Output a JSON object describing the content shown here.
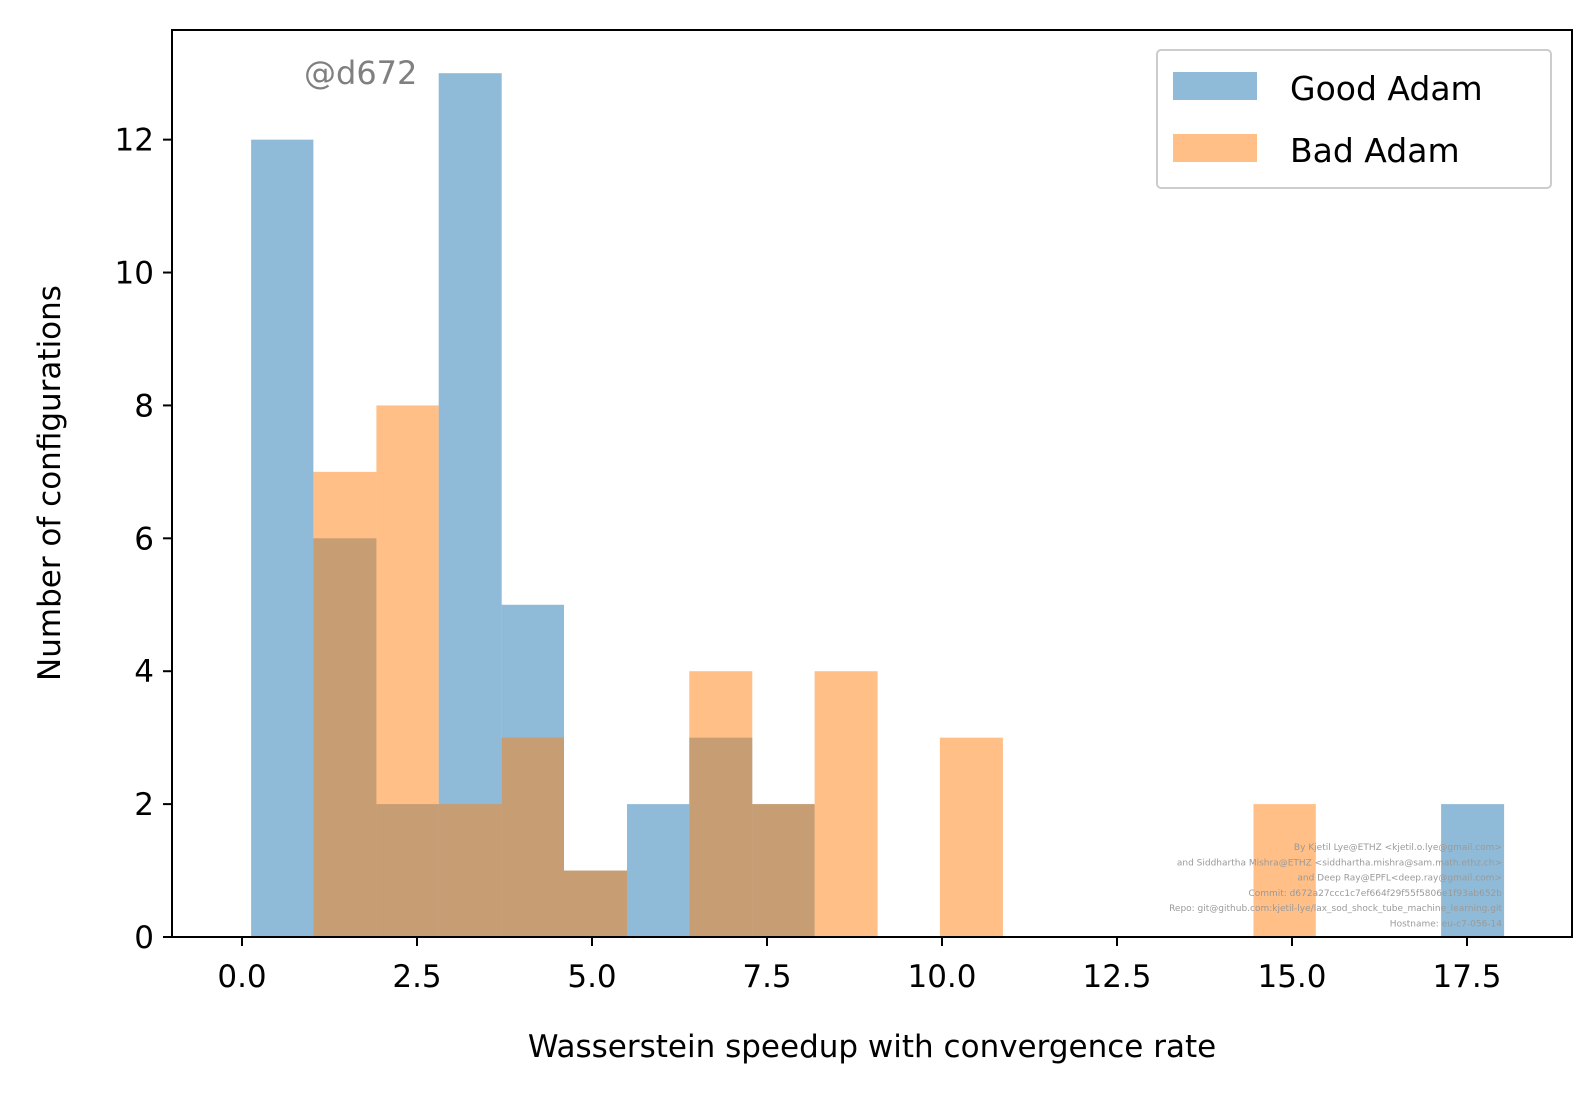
{
  "chart_data": {
    "type": "bar",
    "subtype": "overlapping-histogram",
    "xlabel": "Wasserstein speedup with convergence rate",
    "ylabel": "Number of configurations",
    "xlim": [
      -1.0,
      19.0
    ],
    "ylim": [
      0,
      13.65
    ],
    "x_ticks": [
      0.0,
      2.5,
      5.0,
      7.5,
      10.0,
      12.5,
      15.0,
      17.5
    ],
    "x_tick_labels": [
      "0.0",
      "2.5",
      "5.0",
      "7.5",
      "10.0",
      "12.5",
      "15.0",
      "17.5"
    ],
    "y_ticks": [
      0,
      2,
      4,
      6,
      8,
      10,
      12
    ],
    "y_tick_labels": [
      "0",
      "2",
      "4",
      "6",
      "8",
      "10",
      "12"
    ],
    "grid": false,
    "legend_position": "top-right",
    "series": [
      {
        "name": "Good Adam",
        "color": "#1f77b4",
        "alpha": 0.5,
        "bin_edges": [
          0.13,
          1.02,
          1.92,
          2.81,
          3.71,
          4.6,
          5.5,
          6.39,
          7.29,
          8.18,
          9.08,
          9.97,
          10.87,
          11.76,
          12.66,
          13.55,
          14.45,
          15.34,
          16.24,
          17.13,
          18.03
        ],
        "counts": [
          12,
          6,
          2,
          13,
          5,
          1,
          2,
          3,
          2,
          0,
          0,
          0,
          0,
          0,
          0,
          0,
          0,
          0,
          0,
          2
        ]
      },
      {
        "name": "Bad Adam",
        "color": "#ff7f0e",
        "alpha": 0.5,
        "bin_edges": [
          1.02,
          1.92,
          2.81,
          3.71,
          4.6,
          5.5,
          6.39,
          7.29,
          8.18,
          9.08,
          9.97,
          10.87,
          11.76,
          12.66,
          13.55,
          14.45,
          15.34
        ],
        "counts": [
          7,
          8,
          2,
          3,
          1,
          0,
          4,
          2,
          4,
          0,
          3,
          0,
          0,
          0,
          0,
          2
        ]
      }
    ]
  },
  "watermark": "@d672",
  "credits": [
    "By Kjetil Lye@ETHZ <kjetil.o.lye@gmail.com>",
    "and Siddhartha Mishra@ETHZ <siddhartha.mishra@sam.math.ethz.ch>",
    "and Deep Ray@EPFL<deep.ray@gmail.com>",
    "Commit: d672a27ccc1c7ef664f29f55f5806e1f93ab652b",
    "Repo: git@github.com:kjetil-lye/lax_sod_shock_tube_machine_learning.git",
    "Hostname: eu-c7-056-14"
  ]
}
